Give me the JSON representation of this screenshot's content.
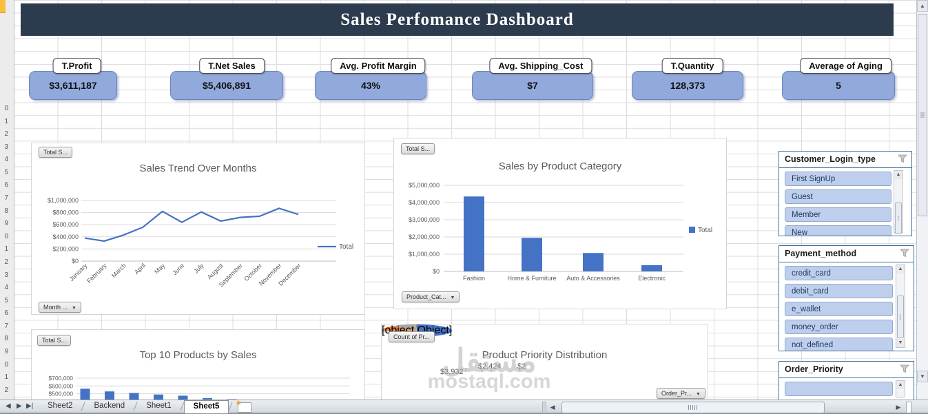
{
  "app": {
    "title": "Sales Perfomance Dashboard"
  },
  "kpis": [
    {
      "label": "T.Profit",
      "value": "$3,611,187"
    },
    {
      "label": "T.Net Sales",
      "value": "$5,406,891"
    },
    {
      "label": "Avg. Profit Margin",
      "value": "43%"
    },
    {
      "label": "Avg. Shipping_Cost",
      "value": "$7"
    },
    {
      "label": "T.Quantity",
      "value": "128,373"
    },
    {
      "label": "Average of Aging",
      "value": "5"
    }
  ],
  "chart_data": [
    {
      "type": "line",
      "title": "Sales Trend Over Months",
      "legend": [
        "Total"
      ],
      "x": [
        "January",
        "February",
        "March",
        "April",
        "May",
        "June",
        "July",
        "August",
        "September",
        "October",
        "November",
        "December"
      ],
      "values": [
        380000,
        330000,
        430000,
        560000,
        820000,
        640000,
        810000,
        660000,
        720000,
        740000,
        870000,
        770000
      ],
      "ylim": [
        0,
        1000000
      ],
      "ytick_labels": [
        "$0",
        "$200,000",
        "$400,000",
        "$600,000",
        "$800,000",
        "$1,000,000"
      ],
      "line_color": "#4472c4",
      "pivot_buttons": {
        "value": "Total S...",
        "axis": "Month ..."
      }
    },
    {
      "type": "bar",
      "title": "Sales by Product Category",
      "legend": [
        "Total"
      ],
      "categories": [
        "Fashion",
        "Home & Furniture",
        "Auto & Accessories",
        "Electronic"
      ],
      "values": [
        4350000,
        1950000,
        1070000,
        360000
      ],
      "ylim": [
        0,
        5000000
      ],
      "ytick_labels": [
        "$0",
        "$1,000,000",
        "$2,000,000",
        "$3,000,000",
        "$4,000,000",
        "$5,000,000"
      ],
      "bar_color": "#4472c4",
      "pivot_buttons": {
        "value": "Total S...",
        "axis": "Product_Cat..."
      }
    },
    {
      "type": "bar",
      "title": "Top 10 Products by Sales",
      "values": [
        565000,
        530000,
        510000,
        490000,
        475000,
        445000,
        430000
      ],
      "note": "chart truncated by screen bottom; only bar tops visible",
      "ytick_labels": [
        "$700,000",
        "$600,000",
        "$500,000"
      ],
      "bar_color": "#4472c4",
      "pivot_buttons": {
        "value": "Total S..."
      }
    },
    {
      "type": "pie",
      "title": "Product Priority Distribution",
      "slices": [
        {
          "label": "",
          "color": "#ed7d31"
        },
        {
          "label": "$3,932",
          "color": "#a5a5a5"
        },
        {
          "label": "$2,424",
          "color": "#ffc000"
        },
        {
          "label": "$2",
          "color": "#4472c4"
        }
      ],
      "pivot_buttons": {
        "value": "Count of Pr...",
        "axis": "Order_Pr..."
      }
    }
  ],
  "slicers": [
    {
      "title": "Customer_Login_type",
      "items": [
        "First SignUp",
        "Guest",
        "Member",
        "New"
      ]
    },
    {
      "title": "Payment_method",
      "items": [
        "credit_card",
        "debit_card",
        "e_wallet",
        "money_order",
        "not_defined"
      ]
    },
    {
      "title": "Order_Priority",
      "items": [
        ""
      ]
    }
  ],
  "sheet_bar": {
    "tabs": [
      "Sheet2",
      "Backend",
      "Sheet1",
      "Sheet5"
    ],
    "active": "Sheet5"
  },
  "row_headers": [
    "0",
    "1",
    "2",
    "3",
    "4",
    "5",
    "6",
    "7",
    "8",
    "9",
    "0",
    "1",
    "2",
    "3",
    "4",
    "5",
    "6",
    "7",
    "8",
    "9",
    "0",
    "1",
    "2"
  ],
  "watermark": {
    "line1": "مستقل",
    "line2": "mostaql.com"
  },
  "icons": {
    "tab_nav_first": "◀",
    "tab_nav_prev": "▶",
    "tab_nav_last": "▶|",
    "scroll_up": "▲",
    "scroll_down": "▼",
    "scroll_left": "◀",
    "scroll_right": "▶",
    "dropdown": "▼",
    "new_sheet_star": "✱"
  },
  "colors": {
    "banner": "#2d3b4e",
    "kpi_fill": "#92a9dc",
    "kpi_border": "#6b84bd",
    "accent_blue": "#4472c4",
    "pie_yellow": "#ffc000",
    "pie_gray": "#a5a5a5",
    "pie_orange": "#ed7d31",
    "slicer_border": "#41719c",
    "slicer_item_fill": "#bdcfec"
  }
}
